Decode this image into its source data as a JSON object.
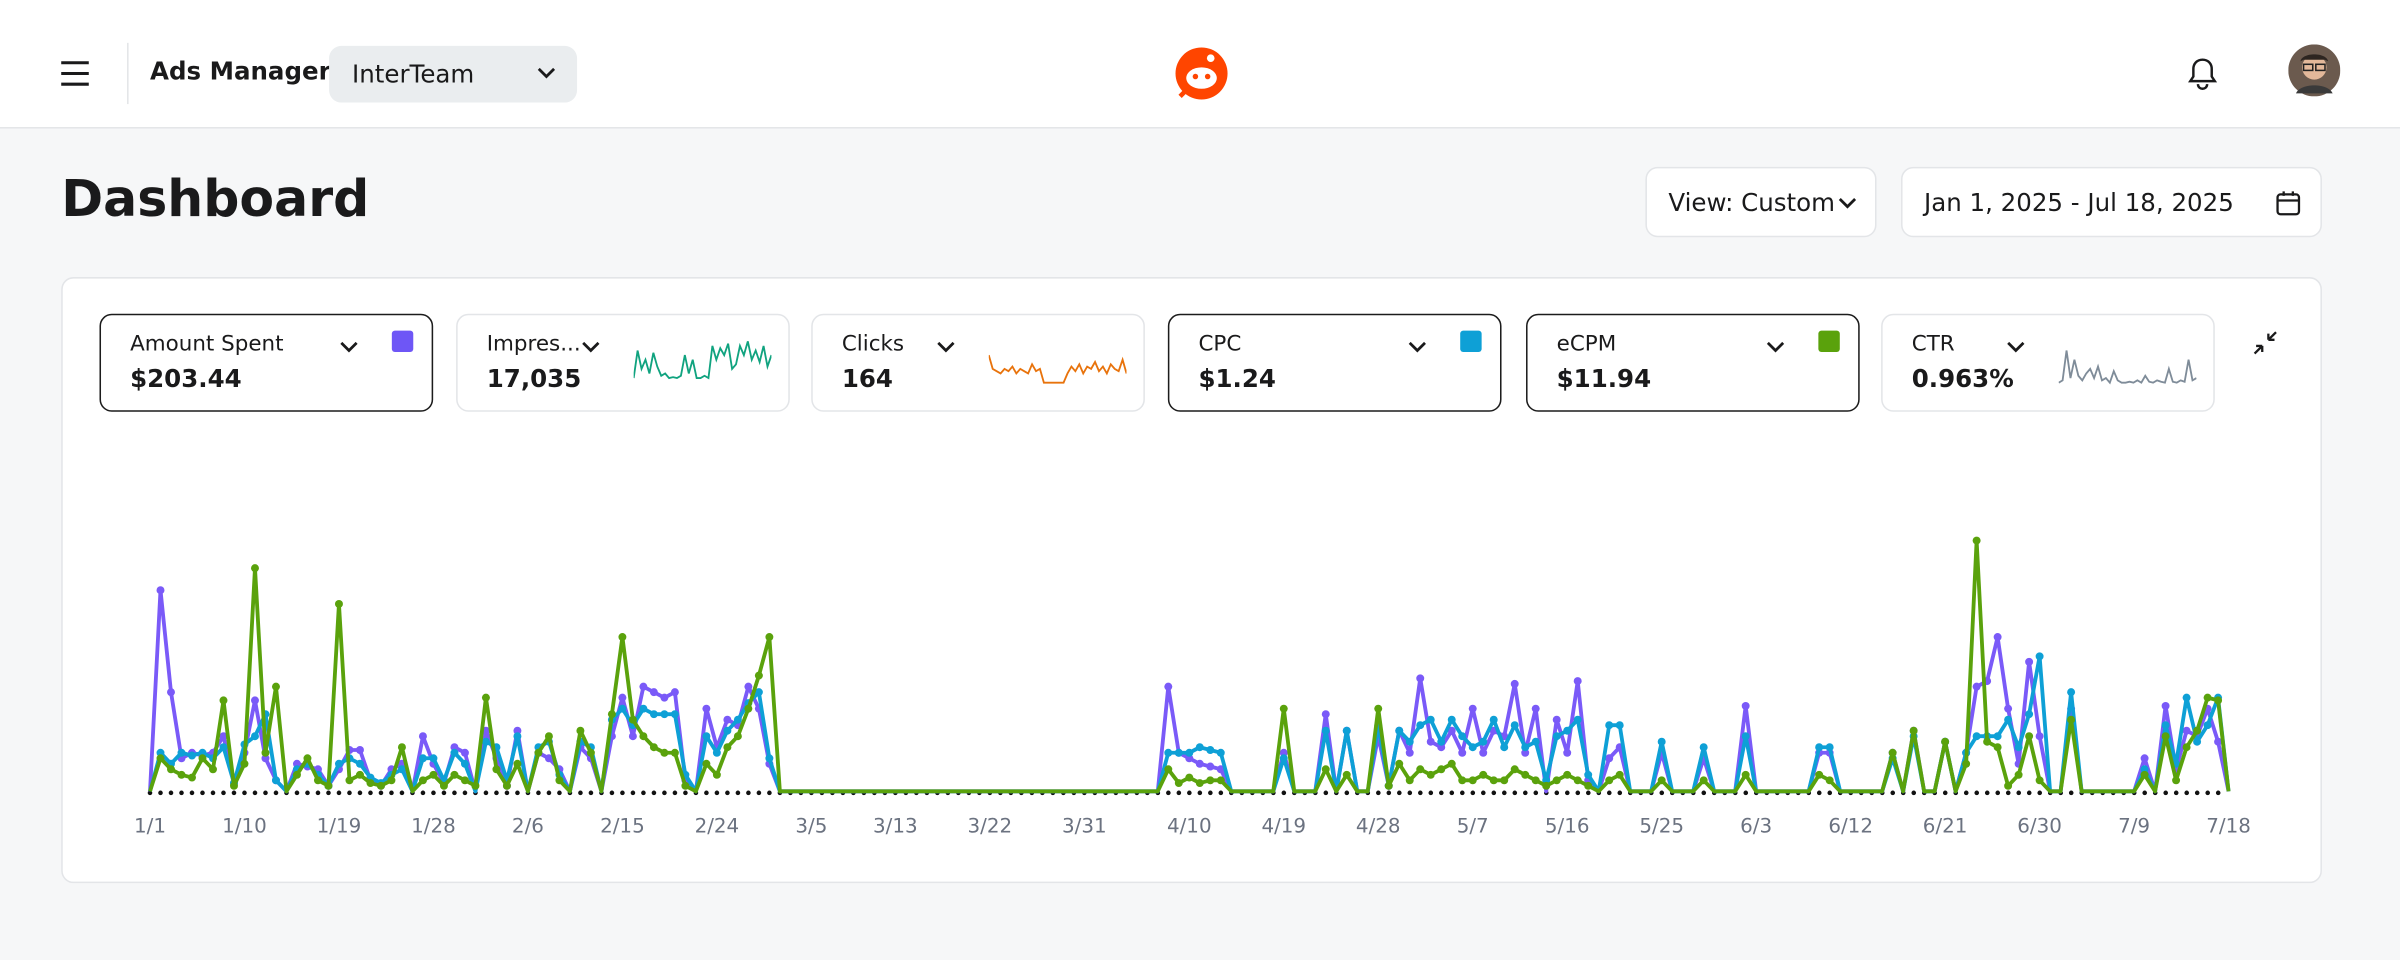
{
  "header": {
    "app_name": "Ads Manager",
    "account": "InterTeam"
  },
  "page": {
    "title": "Dashboard",
    "view": "View: Custom",
    "date_range": "Jan 1, 2025 - Jul 18, 2025"
  },
  "metrics": [
    {
      "label": "Amount Spent",
      "value": "$203.44",
      "color": "#6e56f6",
      "selected": true
    },
    {
      "label": "Impres...",
      "value": "17,035",
      "selected": false,
      "sparkline": {
        "color": "#10a37f",
        "ylim": [
          0,
          100
        ],
        "values": [
          20,
          80,
          40,
          60,
          30,
          75,
          45,
          25,
          30,
          20,
          22,
          20,
          25,
          70,
          30,
          60,
          20,
          20,
          25,
          20,
          90,
          60,
          85,
          70,
          95,
          40,
          50,
          90,
          70,
          100,
          60,
          80,
          55,
          90,
          45,
          70
        ]
      }
    },
    {
      "label": "Clicks",
      "value": "164",
      "selected": false,
      "sparkline": {
        "color": "#e8730c",
        "ylim": [
          0,
          100
        ],
        "values": [
          70,
          40,
          35,
          30,
          40,
          35,
          45,
          30,
          40,
          35,
          30,
          50,
          35,
          40,
          10,
          10,
          10,
          10,
          10,
          10,
          30,
          45,
          35,
          50,
          30,
          45,
          40,
          55,
          35,
          45,
          30,
          50,
          40,
          35,
          60,
          30
        ]
      }
    },
    {
      "label": "CPC",
      "value": "$1.24",
      "color": "#0ea0d6",
      "selected": true
    },
    {
      "label": "eCPM",
      "value": "$11.94",
      "color": "#5aa20c",
      "selected": true
    },
    {
      "label": "CTR",
      "value": "0.963%",
      "selected": false,
      "sparkline": {
        "color": "#7f8c99",
        "ylim": [
          0,
          100
        ],
        "values": [
          10,
          15,
          80,
          20,
          60,
          25,
          15,
          30,
          40,
          20,
          45,
          15,
          20,
          10,
          35,
          15,
          10,
          10,
          12,
          10,
          15,
          10,
          25,
          12,
          10,
          15,
          12,
          10,
          40,
          12,
          10,
          15,
          12,
          60,
          15,
          20
        ]
      }
    }
  ],
  "chart_data": {
    "type": "line",
    "ylim": [
      0,
      100
    ],
    "categories": [
      "1/1",
      null,
      null,
      null,
      null,
      null,
      null,
      null,
      null,
      "1/10",
      null,
      null,
      null,
      null,
      null,
      null,
      null,
      null,
      "1/19",
      null,
      null,
      null,
      null,
      null,
      null,
      null,
      null,
      "1/28",
      null,
      null,
      null,
      null,
      null,
      null,
      null,
      null,
      "2/6",
      null,
      null,
      null,
      null,
      null,
      null,
      null,
      null,
      "2/15",
      null,
      null,
      null,
      null,
      null,
      null,
      null,
      null,
      "2/24",
      null,
      null,
      null,
      null,
      null,
      null,
      null,
      null,
      "3/5",
      null,
      null,
      null,
      null,
      null,
      null,
      null,
      "3/13",
      null,
      null,
      null,
      null,
      null,
      null,
      null,
      null,
      "3/22",
      null,
      null,
      null,
      null,
      null,
      null,
      null,
      null,
      "3/31",
      null,
      null,
      null,
      null,
      null,
      null,
      null,
      null,
      null,
      "4/10",
      null,
      null,
      null,
      null,
      null,
      null,
      null,
      null,
      "4/19",
      null,
      null,
      null,
      null,
      null,
      null,
      null,
      null,
      "4/28",
      null,
      null,
      null,
      null,
      null,
      null,
      null,
      null,
      "5/7",
      null,
      null,
      null,
      null,
      null,
      null,
      null,
      null,
      "5/16",
      null,
      null,
      null,
      null,
      null,
      null,
      null,
      null,
      "5/25",
      null,
      null,
      null,
      null,
      null,
      null,
      null,
      null,
      "6/3",
      null,
      null,
      null,
      null,
      null,
      null,
      null,
      null,
      "6/12",
      null,
      null,
      null,
      null,
      null,
      null,
      null,
      null,
      "6/21",
      null,
      null,
      null,
      null,
      null,
      null,
      null,
      null,
      "6/30",
      null,
      null,
      null,
      null,
      null,
      null,
      null,
      null,
      "7/9",
      null,
      null,
      null,
      null,
      null,
      null,
      null,
      null,
      "7/18"
    ],
    "series": [
      {
        "color": "#7a5af8",
        "values": [
          0,
          73,
          36,
          12,
          14,
          13,
          14,
          20,
          3,
          14,
          33,
          12,
          4,
          0,
          10,
          9,
          8,
          2,
          8,
          15,
          15,
          4,
          2,
          8,
          10,
          0,
          20,
          10,
          3,
          16,
          14,
          0,
          22,
          12,
          2,
          22,
          0,
          14,
          12,
          8,
          0,
          16,
          12,
          0,
          20,
          34,
          20,
          38,
          36,
          34,
          36,
          4,
          0,
          30,
          16,
          26,
          24,
          38,
          30,
          10,
          0,
          0,
          0,
          0,
          0,
          0,
          0,
          0,
          0,
          0,
          0,
          0,
          0,
          0,
          0,
          0,
          0,
          0,
          0,
          0,
          0,
          0,
          0,
          0,
          0,
          0,
          0,
          0,
          0,
          0,
          0,
          0,
          0,
          0,
          0,
          0,
          0,
          38,
          14,
          12,
          10,
          9,
          8,
          0,
          0,
          0,
          0,
          0,
          14,
          0,
          0,
          0,
          28,
          0,
          22,
          0,
          0,
          20,
          2,
          22,
          14,
          41,
          18,
          16,
          22,
          14,
          30,
          14,
          22,
          20,
          39,
          14,
          30,
          0,
          26,
          14,
          40,
          4,
          0,
          12,
          16,
          0,
          0,
          0,
          14,
          0,
          0,
          0,
          12,
          0,
          0,
          0,
          31,
          0,
          0,
          0,
          0,
          0,
          0,
          14,
          14,
          0,
          0,
          0,
          0,
          0,
          14,
          0,
          22,
          0,
          0,
          18,
          0,
          14,
          38,
          40,
          56,
          30,
          10,
          47,
          20,
          0,
          0,
          30,
          0,
          0,
          0,
          0,
          0,
          0,
          12,
          0,
          31,
          8,
          22,
          20,
          30,
          18,
          0
        ]
      },
      {
        "color": "#0ea0d6",
        "values": [
          0,
          14,
          10,
          14,
          13,
          14,
          12,
          16,
          3,
          17,
          20,
          28,
          4,
          0,
          8,
          10,
          6,
          2,
          10,
          12,
          10,
          5,
          3,
          6,
          8,
          0,
          12,
          12,
          4,
          14,
          10,
          0,
          18,
          16,
          4,
          20,
          0,
          16,
          18,
          6,
          0,
          18,
          16,
          0,
          26,
          30,
          24,
          30,
          28,
          28,
          28,
          6,
          0,
          20,
          14,
          22,
          26,
          32,
          36,
          12,
          0,
          0,
          0,
          0,
          0,
          0,
          0,
          0,
          0,
          0,
          0,
          0,
          0,
          0,
          0,
          0,
          0,
          0,
          0,
          0,
          0,
          0,
          0,
          0,
          0,
          0,
          0,
          0,
          0,
          0,
          0,
          0,
          0,
          0,
          0,
          0,
          0,
          14,
          14,
          14,
          16,
          15,
          14,
          0,
          0,
          0,
          0,
          0,
          12,
          0,
          0,
          0,
          22,
          0,
          22,
          0,
          0,
          24,
          2,
          22,
          18,
          24,
          26,
          18,
          26,
          20,
          16,
          18,
          26,
          16,
          24,
          16,
          18,
          4,
          20,
          22,
          26,
          6,
          0,
          24,
          24,
          0,
          0,
          0,
          18,
          0,
          0,
          0,
          16,
          0,
          0,
          0,
          20,
          0,
          0,
          0,
          0,
          0,
          0,
          16,
          16,
          0,
          0,
          0,
          0,
          0,
          12,
          0,
          20,
          0,
          0,
          18,
          0,
          14,
          20,
          20,
          20,
          26,
          16,
          28,
          49,
          0,
          0,
          36,
          0,
          0,
          0,
          0,
          0,
          0,
          8,
          0,
          24,
          10,
          34,
          18,
          24,
          34,
          0
        ]
      },
      {
        "color": "#5aa20c",
        "values": [
          0,
          12,
          8,
          6,
          5,
          12,
          8,
          33,
          2,
          10,
          81,
          14,
          38,
          0,
          6,
          12,
          4,
          2,
          68,
          4,
          6,
          3,
          2,
          4,
          16,
          0,
          4,
          6,
          2,
          6,
          4,
          2,
          34,
          8,
          2,
          10,
          0,
          14,
          20,
          4,
          0,
          22,
          14,
          0,
          28,
          56,
          26,
          20,
          16,
          14,
          14,
          2,
          0,
          10,
          6,
          16,
          20,
          30,
          42,
          56,
          0,
          0,
          0,
          0,
          0,
          0,
          0,
          0,
          0,
          0,
          0,
          0,
          0,
          0,
          0,
          0,
          0,
          0,
          0,
          0,
          0,
          0,
          0,
          0,
          0,
          0,
          0,
          0,
          0,
          0,
          0,
          0,
          0,
          0,
          0,
          0,
          0,
          8,
          3,
          5,
          3,
          4,
          4,
          0,
          0,
          0,
          0,
          0,
          30,
          0,
          0,
          0,
          8,
          0,
          6,
          0,
          0,
          30,
          2,
          10,
          4,
          8,
          6,
          8,
          10,
          4,
          4,
          6,
          4,
          4,
          8,
          6,
          4,
          2,
          4,
          6,
          4,
          2,
          0,
          4,
          6,
          0,
          0,
          0,
          4,
          0,
          0,
          0,
          4,
          0,
          0,
          0,
          6,
          0,
          0,
          0,
          0,
          0,
          0,
          6,
          4,
          0,
          0,
          0,
          0,
          0,
          14,
          0,
          22,
          0,
          0,
          18,
          0,
          10,
          91,
          18,
          16,
          2,
          6,
          20,
          4,
          0,
          0,
          26,
          0,
          0,
          0,
          0,
          0,
          0,
          6,
          0,
          20,
          4,
          16,
          22,
          34,
          33,
          0
        ]
      }
    ]
  }
}
